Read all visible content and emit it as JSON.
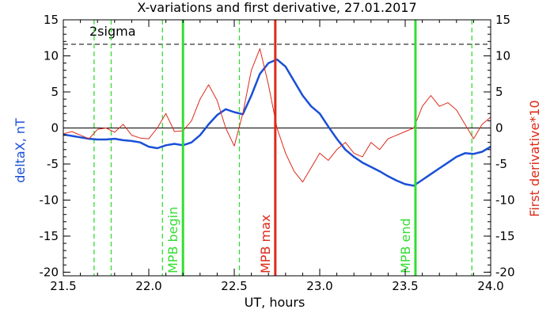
{
  "chart_data": {
    "type": "line",
    "title": "X-variations and first derivative, 27.01.2017",
    "xlabel": "UT, hours",
    "ylabel_left": "deltaX, nT",
    "ylabel_right": "First derivative*10",
    "annotation": "2sigma",
    "xlim": [
      21.5,
      24.0
    ],
    "ylim": [
      -20.5,
      15
    ],
    "x_ticks": [
      21.5,
      22.0,
      22.5,
      23.0,
      23.5,
      24.0
    ],
    "x_tick_labels": [
      "21.5",
      "22.0",
      "22.5",
      "23.0",
      "23.5",
      "24.0"
    ],
    "y_ticks": [
      15,
      10,
      5,
      0,
      -5,
      -10,
      -15,
      -20
    ],
    "y_tick_labels": [
      "15",
      "10",
      "5",
      "0",
      "-5",
      "-10",
      "-15",
      "-20"
    ],
    "colors": {
      "deltaX": "#1a4fd6",
      "derivative": "#dd2a1a",
      "markers": "#33dd33",
      "max_marker": "#dd2a1a",
      "zero_line": "#000000",
      "sigma_line": "#000000"
    },
    "horizontal_lines": [
      {
        "name": "zero",
        "y": 0,
        "style": "solid"
      },
      {
        "name": "2sigma",
        "y": 11.6,
        "style": "dashed"
      }
    ],
    "markers": [
      {
        "label": "MPB begin",
        "x": 22.2,
        "style": "solid",
        "color": "green"
      },
      {
        "label": "MPB max",
        "x": 22.74,
        "style": "solid",
        "color": "red"
      },
      {
        "label": "MPB end",
        "x": 23.56,
        "style": "solid",
        "color": "green"
      }
    ],
    "dashed_markers": [
      21.68,
      21.78,
      22.08,
      22.53,
      23.89
    ],
    "series": [
      {
        "key": "deltaX",
        "x": [
          21.5,
          21.55,
          21.6,
          21.65,
          21.7,
          21.75,
          21.8,
          21.85,
          21.9,
          21.95,
          22.0,
          22.05,
          22.1,
          22.15,
          22.2,
          22.25,
          22.3,
          22.35,
          22.4,
          22.45,
          22.5,
          22.55,
          22.6,
          22.65,
          22.7,
          22.75,
          22.8,
          22.85,
          22.9,
          22.95,
          23.0,
          23.05,
          23.1,
          23.15,
          23.2,
          23.25,
          23.3,
          23.35,
          23.4,
          23.45,
          23.5,
          23.55,
          23.6,
          23.65,
          23.7,
          23.75,
          23.8,
          23.85,
          23.9,
          23.95,
          24.0
        ],
        "values": [
          -0.9,
          -1.1,
          -1.3,
          -1.5,
          -1.6,
          -1.6,
          -1.5,
          -1.7,
          -1.8,
          -2.0,
          -2.6,
          -2.8,
          -2.4,
          -2.2,
          -2.4,
          -2.0,
          -1.0,
          0.5,
          1.8,
          2.6,
          2.2,
          1.9,
          4.5,
          7.5,
          9.0,
          9.5,
          8.5,
          6.5,
          4.5,
          3.0,
          2.0,
          0.2,
          -1.5,
          -3.0,
          -4.0,
          -4.8,
          -5.4,
          -6.0,
          -6.7,
          -7.3,
          -7.8,
          -8.0,
          -7.2,
          -6.4,
          -5.6,
          -4.8,
          -4.0,
          -3.5,
          -3.6,
          -3.3,
          -2.6
        ]
      },
      {
        "key": "derivative",
        "x": [
          21.5,
          21.55,
          21.6,
          21.65,
          21.7,
          21.75,
          21.8,
          21.85,
          21.9,
          21.95,
          22.0,
          22.05,
          22.1,
          22.15,
          22.2,
          22.25,
          22.3,
          22.35,
          22.4,
          22.45,
          22.5,
          22.55,
          22.6,
          22.65,
          22.7,
          22.75,
          22.8,
          22.85,
          22.9,
          22.95,
          23.0,
          23.05,
          23.1,
          23.15,
          23.2,
          23.25,
          23.3,
          23.35,
          23.4,
          23.45,
          23.5,
          23.55,
          23.6,
          23.65,
          23.7,
          23.75,
          23.8,
          23.85,
          23.9,
          23.95,
          24.0
        ],
        "values": [
          -0.8,
          -0.5,
          -1.0,
          -1.5,
          -0.2,
          0.0,
          -0.6,
          0.5,
          -1.0,
          -1.4,
          -1.5,
          0.0,
          2.0,
          -0.5,
          -0.4,
          1.0,
          4.0,
          6.0,
          3.8,
          0.0,
          -2.5,
          2.0,
          8.0,
          11.0,
          6.0,
          0.0,
          -3.5,
          -6.0,
          -7.5,
          -5.5,
          -3.5,
          -4.5,
          -3.0,
          -2.0,
          -3.5,
          -4.0,
          -2.0,
          -3.0,
          -1.5,
          -1.0,
          -0.5,
          0.0,
          3.0,
          4.5,
          3.0,
          3.5,
          2.5,
          0.5,
          -1.5,
          0.5,
          1.5
        ]
      }
    ]
  }
}
